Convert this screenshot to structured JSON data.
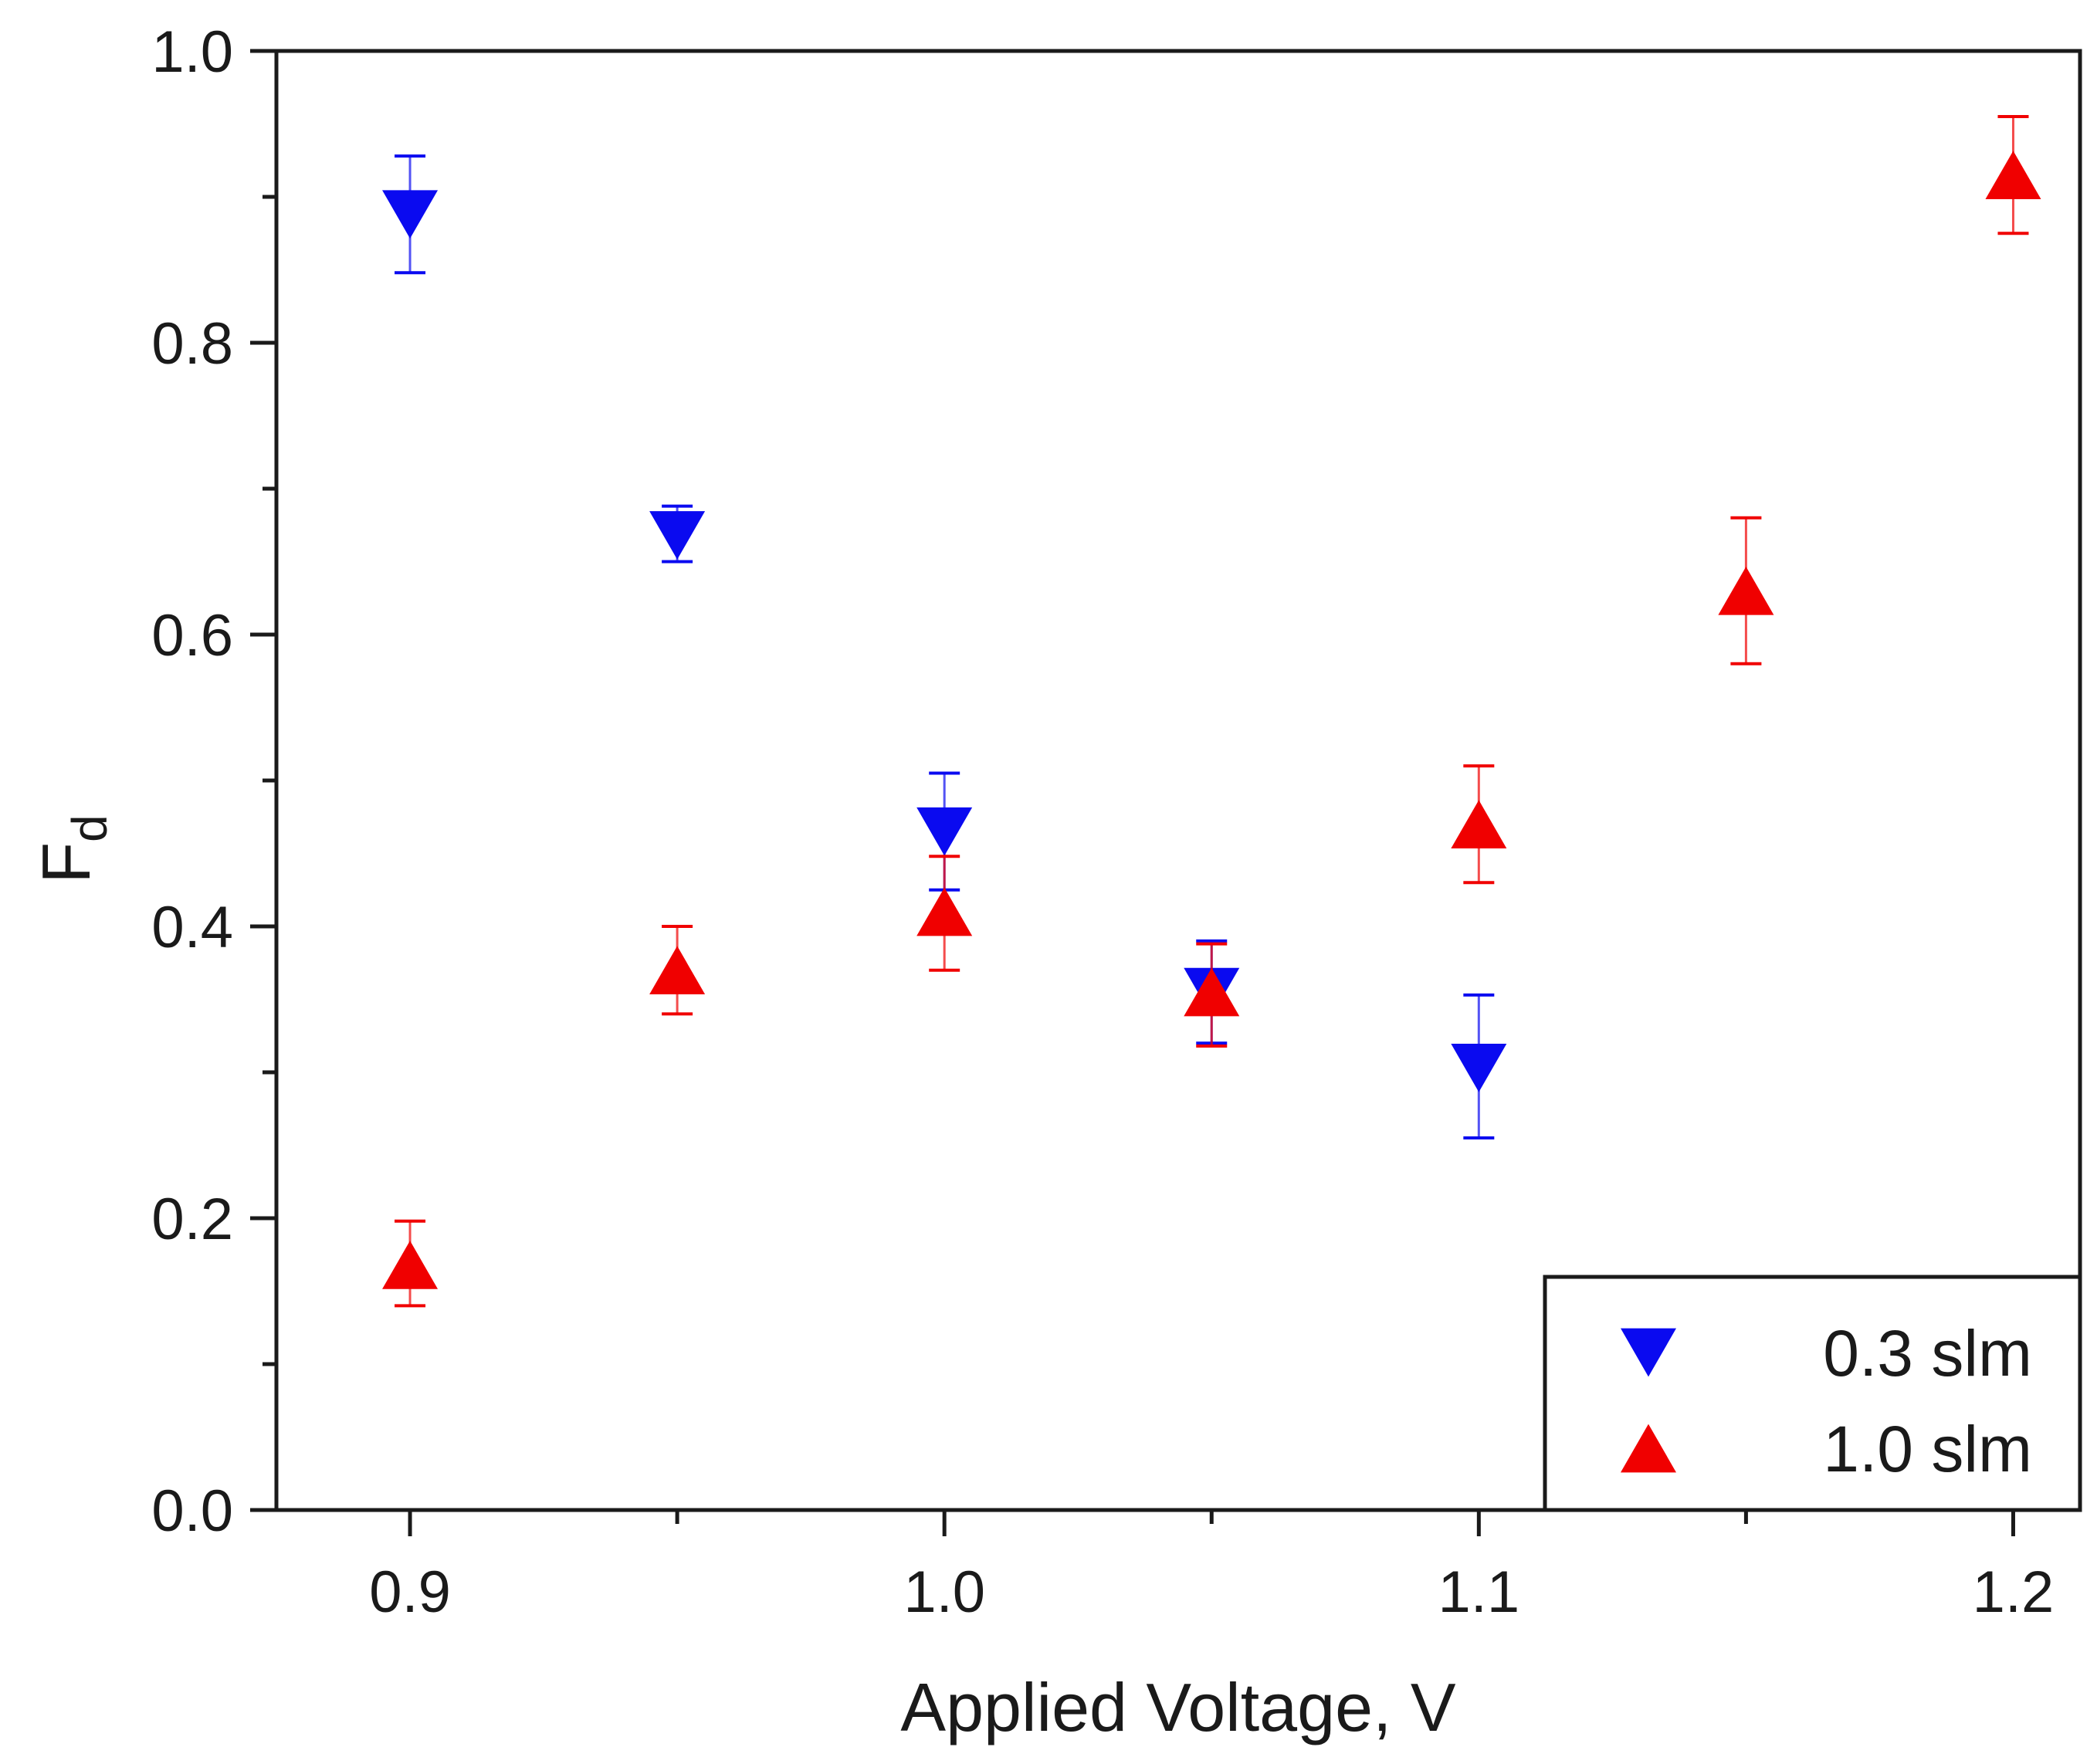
{
  "chart_data": {
    "type": "scatter",
    "title": "",
    "xlabel": "Applied Voltage, V",
    "ylabel_main": "F",
    "ylabel_sub": "d",
    "xlim": [
      0.875,
      1.2125
    ],
    "ylim": [
      0.0,
      1.0
    ],
    "xticks": [
      0.9,
      1.0,
      1.1,
      1.2
    ],
    "xtick_labels": [
      "0.9",
      "1.0",
      "1.1",
      "1.2"
    ],
    "x_minor_ticks": [
      0.95,
      1.05,
      1.15
    ],
    "yticks": [
      0.0,
      0.2,
      0.4,
      0.6,
      0.8,
      1.0
    ],
    "ytick_labels": [
      "0.0",
      "0.2",
      "0.4",
      "0.6",
      "0.8",
      "1.0"
    ],
    "y_minor_ticks": [
      0.1,
      0.3,
      0.5,
      0.7,
      0.9
    ],
    "grid": false,
    "legend_position": "bottom-right",
    "series": [
      {
        "name": "0.3 slm",
        "marker": "triangle-down",
        "color": "#0a0af0",
        "x": [
          0.9,
          0.95,
          1.0,
          1.05,
          1.1
        ],
        "y": [
          0.888,
          0.668,
          0.465,
          0.355,
          0.303
        ],
        "err_low": [
          0.848,
          0.65,
          0.425,
          0.32,
          0.255
        ],
        "err_high": [
          0.928,
          0.688,
          0.505,
          0.39,
          0.353
        ]
      },
      {
        "name": "1.0 slm",
        "marker": "triangle-up",
        "color": "#f00000",
        "x": [
          0.9,
          0.95,
          1.0,
          1.05,
          1.1,
          1.15,
          1.2
        ],
        "y": [
          0.168,
          0.37,
          0.41,
          0.355,
          0.47,
          0.63,
          0.915
        ],
        "err_low": [
          0.14,
          0.34,
          0.37,
          0.318,
          0.43,
          0.58,
          0.875
        ],
        "err_high": [
          0.198,
          0.4,
          0.448,
          0.388,
          0.51,
          0.68,
          0.955
        ]
      }
    ]
  }
}
